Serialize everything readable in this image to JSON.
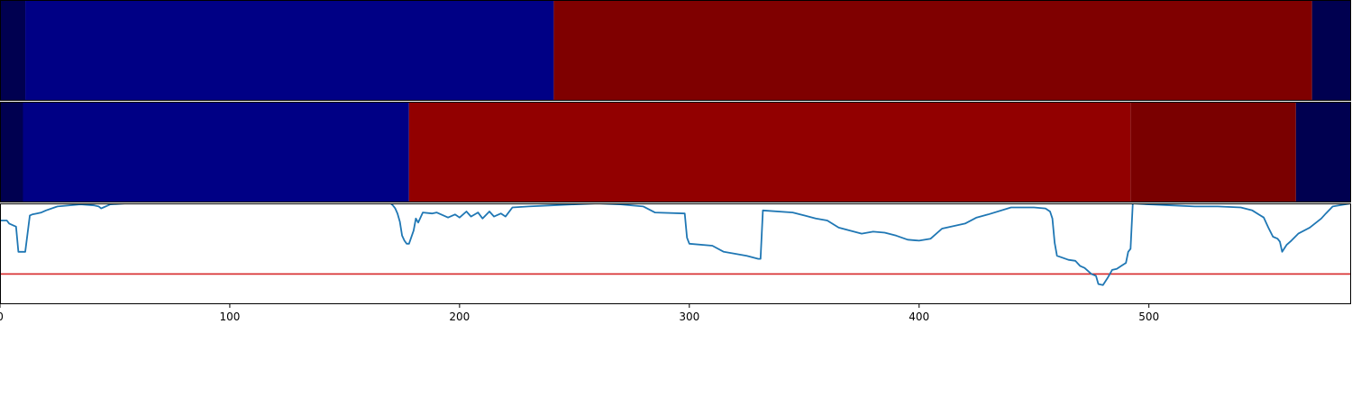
{
  "chart_data": [
    {
      "type": "heatmap",
      "title": "",
      "segments": [
        {
          "x0": 0,
          "x1": 11,
          "color": "#000050"
        },
        {
          "x0": 11,
          "x1": 241,
          "color": "#000085"
        },
        {
          "x0": 241,
          "x1": 571,
          "color": "#7f0000"
        },
        {
          "x0": 571,
          "x1": 588,
          "color": "#000050"
        }
      ]
    },
    {
      "type": "heatmap",
      "title": "",
      "segments": [
        {
          "x0": 0,
          "x1": 10,
          "color": "#000050"
        },
        {
          "x0": 10,
          "x1": 178,
          "color": "#000085"
        },
        {
          "x0": 178,
          "x1": 492,
          "color": "#920000"
        },
        {
          "x0": 492,
          "x1": 564,
          "color": "#7a0000"
        },
        {
          "x0": 564,
          "x1": 588,
          "color": "#000050"
        }
      ]
    },
    {
      "type": "line",
      "title": "",
      "xlabel": "",
      "ylabel": "",
      "xlim": [
        0,
        588
      ],
      "ylim": [
        0,
        1
      ],
      "xticks": [
        "0",
        "100",
        "200",
        "300",
        "400",
        "500"
      ],
      "threshold": {
        "y": 0.3,
        "color": "#d62728"
      },
      "series": [
        {
          "color": "#1f77b4",
          "x": [
            0,
            3,
            4,
            7,
            8,
            10,
            11,
            13,
            14,
            16,
            18,
            20,
            25,
            35,
            41,
            43,
            44,
            45,
            48,
            55,
            70,
            100,
            140,
            170,
            171,
            172,
            173,
            174,
            175,
            176,
            177,
            178,
            180,
            181,
            182,
            184,
            188,
            190,
            195,
            198,
            200,
            203,
            205,
            208,
            210,
            213,
            215,
            218,
            220,
            223,
            230,
            240,
            250,
            260,
            270,
            280,
            285,
            298,
            299,
            300,
            310,
            315,
            320,
            325,
            330,
            331,
            332,
            345,
            350,
            355,
            360,
            365,
            370,
            375,
            380,
            385,
            390,
            395,
            400,
            405,
            410,
            420,
            425,
            430,
            440,
            450,
            455,
            457,
            458,
            459,
            460,
            465,
            468,
            470,
            472,
            475,
            477,
            478,
            480,
            482,
            484,
            486,
            488,
            490,
            491,
            492,
            493,
            500,
            510,
            520,
            530,
            540,
            545,
            550,
            552,
            554,
            556,
            557,
            558,
            560,
            562,
            565,
            570,
            575,
            577,
            580,
            588
          ],
          "y": [
            0.83,
            0.83,
            0.8,
            0.77,
            0.52,
            0.52,
            0.52,
            0.88,
            0.89,
            0.9,
            0.91,
            0.93,
            0.97,
            0.99,
            0.98,
            0.97,
            0.95,
            0.96,
            0.99,
            1.0,
            1.0,
            1.0,
            1.0,
            1.0,
            0.98,
            0.95,
            0.9,
            0.82,
            0.68,
            0.63,
            0.6,
            0.6,
            0.73,
            0.85,
            0.81,
            0.91,
            0.9,
            0.91,
            0.86,
            0.89,
            0.86,
            0.92,
            0.87,
            0.91,
            0.85,
            0.92,
            0.87,
            0.9,
            0.87,
            0.96,
            0.97,
            0.98,
            0.99,
            1.0,
            0.99,
            0.97,
            0.91,
            0.9,
            0.66,
            0.6,
            0.58,
            0.52,
            0.5,
            0.48,
            0.45,
            0.45,
            0.93,
            0.91,
            0.88,
            0.85,
            0.83,
            0.76,
            0.73,
            0.7,
            0.72,
            0.71,
            0.68,
            0.64,
            0.63,
            0.65,
            0.75,
            0.8,
            0.86,
            0.89,
            0.96,
            0.96,
            0.95,
            0.92,
            0.85,
            0.61,
            0.48,
            0.44,
            0.43,
            0.38,
            0.36,
            0.3,
            0.28,
            0.2,
            0.19,
            0.26,
            0.34,
            0.35,
            0.38,
            0.41,
            0.52,
            0.55,
            1.0,
            0.99,
            0.98,
            0.97,
            0.97,
            0.96,
            0.93,
            0.86,
            0.76,
            0.67,
            0.65,
            0.62,
            0.52,
            0.59,
            0.63,
            0.7,
            0.76,
            0.85,
            0.9,
            0.97,
            1.0
          ]
        }
      ]
    }
  ]
}
